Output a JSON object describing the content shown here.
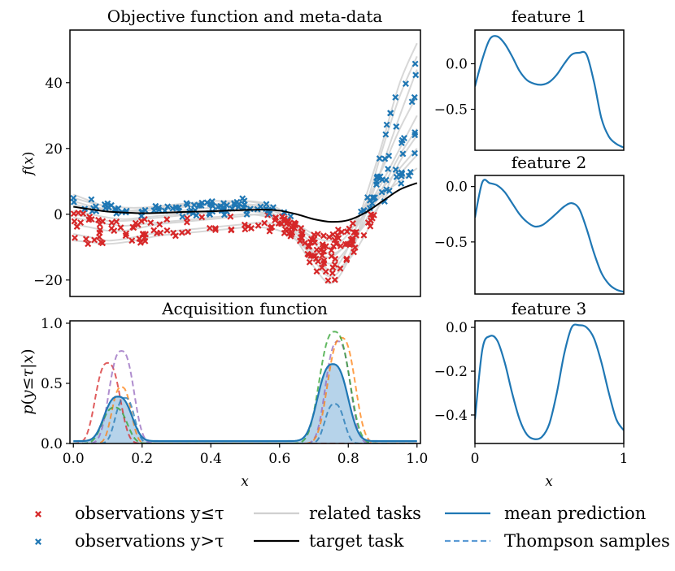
{
  "figure": {
    "legend": {
      "items": [
        {
          "kind": "marker",
          "marker": "x",
          "color": "#d62728",
          "label": "observations y≤τ"
        },
        {
          "kind": "marker",
          "marker": "x",
          "color": "#1f77b4",
          "label": "observations y>τ"
        },
        {
          "kind": "line",
          "color": "#d0d0d0",
          "dash": "solid",
          "label": "related tasks"
        },
        {
          "kind": "line",
          "color": "#000000",
          "dash": "solid",
          "label": "target task"
        },
        {
          "kind": "line",
          "color": "#1f77b4",
          "dash": "solid",
          "label": "mean prediction"
        },
        {
          "kind": "line",
          "color": "#5b9bd5",
          "dash": "dashed",
          "label": "Thompson samples"
        }
      ]
    }
  },
  "chart_data": [
    {
      "id": "objective",
      "type": "line",
      "title": "Objective function and meta-data",
      "xlabel": "",
      "ylabel": "f(x)",
      "xlim": [
        -0.01,
        1.01
      ],
      "ylim": [
        -25,
        56
      ],
      "yticks": [
        -20,
        0,
        20,
        40
      ],
      "yticklabels": [
        "−20",
        "0",
        "20",
        "40"
      ],
      "xticks": [],
      "target_task": {
        "color": "#000000",
        "x": [
          0.0,
          0.05,
          0.1,
          0.15,
          0.2,
          0.25,
          0.3,
          0.35,
          0.4,
          0.45,
          0.5,
          0.55,
          0.6,
          0.65,
          0.7,
          0.75,
          0.8,
          0.85,
          0.9,
          0.95,
          1.0
        ],
        "y": [
          2.3,
          1.5,
          0.8,
          0.5,
          0.3,
          0.4,
          0.6,
          0.8,
          0.9,
          1.1,
          1.3,
          1.4,
          1.1,
          0.0,
          -1.5,
          -2.3,
          -1.8,
          0.5,
          4.0,
          7.5,
          9.5
        ]
      },
      "related_tasks": [
        {
          "y": [
            4.0,
            2.5,
            1.5,
            1.0,
            1.5,
            2.0,
            2.5,
            3.0,
            3.0,
            2.8,
            2.5,
            2.0,
            0.0,
            -5.0,
            -12.0,
            -17.0,
            -10.0,
            5.0,
            22.0,
            40.0,
            52.0
          ]
        },
        {
          "y": [
            -3.0,
            -4.0,
            -5.0,
            -5.0,
            -4.0,
            -3.0,
            -2.5,
            -2.0,
            -1.5,
            -1.0,
            -0.5,
            0.0,
            -2.0,
            -8.0,
            -16.0,
            -21.0,
            -14.0,
            0.0,
            15.0,
            30.0,
            44.0
          ]
        },
        {
          "y": [
            6.0,
            4.0,
            2.0,
            1.0,
            1.0,
            1.5,
            2.0,
            2.5,
            3.0,
            3.5,
            4.0,
            3.5,
            1.5,
            -3.0,
            -8.0,
            -10.0,
            -6.0,
            3.0,
            14.0,
            26.0,
            36.0
          ]
        },
        {
          "y": [
            -6.0,
            -7.0,
            -8.0,
            -7.5,
            -6.5,
            -5.5,
            -5.0,
            -4.5,
            -4.0,
            -3.5,
            -3.0,
            -2.5,
            -3.5,
            -7.0,
            -12.0,
            -15.0,
            -10.0,
            -2.0,
            8.0,
            18.0,
            26.0
          ]
        },
        {
          "y": [
            1.0,
            0.0,
            -1.0,
            -1.5,
            -1.0,
            -0.5,
            0.0,
            0.5,
            1.0,
            1.5,
            2.0,
            1.5,
            -1.0,
            -6.0,
            -11.0,
            -13.0,
            -8.0,
            1.0,
            10.0,
            20.0,
            30.0
          ]
        },
        {
          "y": [
            -1.0,
            -2.0,
            -3.0,
            -3.5,
            -3.0,
            -2.5,
            -2.0,
            -1.5,
            -1.0,
            -0.5,
            0.0,
            -0.5,
            -2.0,
            -5.0,
            -9.0,
            -12.0,
            -9.0,
            -3.0,
            4.0,
            12.0,
            18.0
          ]
        },
        {
          "y": [
            3.0,
            2.0,
            1.5,
            1.0,
            0.5,
            0.5,
            1.0,
            1.5,
            2.0,
            2.5,
            3.0,
            2.5,
            0.5,
            -3.0,
            -6.0,
            -7.0,
            -4.0,
            2.0,
            8.0,
            14.0,
            20.0
          ]
        },
        {
          "y": [
            -8.0,
            -8.5,
            -9.0,
            -8.5,
            -7.5,
            -6.5,
            -6.0,
            -5.5,
            -5.0,
            -4.5,
            -4.0,
            -4.0,
            -5.0,
            -8.0,
            -13.0,
            -17.0,
            -14.0,
            -6.0,
            5.0,
            16.0,
            24.0
          ]
        },
        {
          "y": [
            5.0,
            3.5,
            2.5,
            2.0,
            2.0,
            2.5,
            3.0,
            3.5,
            4.0,
            4.0,
            4.0,
            3.0,
            0.0,
            -6.0,
            -14.0,
            -19.0,
            -13.0,
            2.0,
            20.0,
            36.0,
            48.0
          ]
        },
        {
          "y": [
            0.0,
            -1.0,
            -2.0,
            -2.0,
            -1.5,
            -1.0,
            -0.5,
            0.0,
            0.5,
            1.0,
            1.0,
            0.5,
            -1.0,
            -4.0,
            -7.0,
            -8.0,
            -5.0,
            0.0,
            6.0,
            10.0,
            14.0
          ]
        }
      ],
      "observation_legend": {
        "below_threshold_color": "#d62728",
        "above_threshold_color": "#1f77b4",
        "marker": "x"
      }
    },
    {
      "id": "acquisition",
      "type": "area",
      "title": "Acquisition function",
      "xlabel": "x",
      "ylabel": "p(y≤τ|x)",
      "xlim": [
        -0.01,
        1.01
      ],
      "ylim": [
        0.0,
        1.02
      ],
      "xticks": [
        0.0,
        0.2,
        0.4,
        0.6,
        0.8,
        1.0
      ],
      "xticklabels": [
        "0.0",
        "0.2",
        "0.4",
        "0.6",
        "0.8",
        "1.0"
      ],
      "yticks": [
        0.0,
        0.5,
        1.0
      ],
      "yticklabels": [
        "0.0",
        "0.5",
        "1.0"
      ],
      "mean_prediction": {
        "color": "#1f77b4",
        "fill": "#a9cbe6",
        "peaks": [
          [
            0.0,
            0.13,
            0.37,
            0.05
          ],
          [
            0.0,
            0.755,
            0.64,
            0.055
          ]
        ],
        "baseline": 0.02
      },
      "thompson_samples": [
        {
          "color": "#d62728",
          "peaks": [
            [
              0.0,
              0.1,
              0.67,
              0.045
            ],
            [
              0.0,
              0.755,
              0.0,
              0.05
            ]
          ],
          "baseline": 0.0
        },
        {
          "color": "#9467bd",
          "peaks": [
            [
              0.0,
              0.14,
              0.77,
              0.045
            ],
            [
              0.0,
              0.77,
              0.85,
              0.045
            ]
          ],
          "baseline": 0.0
        },
        {
          "color": "#ff7f0e",
          "peaks": [
            [
              0.0,
              0.14,
              0.47,
              0.035
            ],
            [
              0.0,
              0.78,
              0.88,
              0.05
            ]
          ],
          "baseline": 0.0
        },
        {
          "color": "#2ca02c",
          "peaks": [
            [
              0.0,
              0.12,
              0.3,
              0.045
            ],
            [
              0.0,
              0.76,
              0.93,
              0.055
            ]
          ],
          "baseline": 0.0
        },
        {
          "color": "#1f77b4",
          "peaks": [
            [
              0.0,
              0.15,
              0.38,
              0.035
            ],
            [
              0.0,
              0.76,
              0.33,
              0.035
            ]
          ],
          "baseline": 0.0
        }
      ]
    },
    {
      "id": "feature1",
      "type": "line",
      "title": "feature 1",
      "xlim": [
        0.0,
        1.0
      ],
      "ylim": [
        -0.95,
        0.37
      ],
      "yticks": [
        0.0,
        -0.5
      ],
      "yticklabels": [
        "0.0",
        "−0.5"
      ],
      "xticks": [],
      "series": [
        {
          "color": "#1f77b4",
          "x": [
            0.0,
            0.05,
            0.1,
            0.15,
            0.2,
            0.25,
            0.3,
            0.35,
            0.4,
            0.45,
            0.5,
            0.55,
            0.6,
            0.65,
            0.7,
            0.75,
            0.8,
            0.85,
            0.9,
            0.95,
            1.0
          ],
          "y": [
            -0.25,
            0.05,
            0.27,
            0.3,
            0.22,
            0.08,
            -0.08,
            -0.18,
            -0.22,
            -0.23,
            -0.2,
            -0.12,
            0.0,
            0.1,
            0.12,
            0.1,
            -0.2,
            -0.6,
            -0.8,
            -0.88,
            -0.92
          ]
        }
      ]
    },
    {
      "id": "feature2",
      "type": "line",
      "title": "feature 2",
      "xlim": [
        0.0,
        1.0
      ],
      "ylim": [
        -0.97,
        0.1
      ],
      "yticks": [
        0.0,
        -0.5
      ],
      "yticklabels": [
        "0.0",
        "−0.5"
      ],
      "xticks": [],
      "series": [
        {
          "color": "#1f77b4",
          "x": [
            0.0,
            0.05,
            0.1,
            0.15,
            0.2,
            0.25,
            0.3,
            0.35,
            0.4,
            0.45,
            0.5,
            0.55,
            0.6,
            0.65,
            0.7,
            0.75,
            0.8,
            0.85,
            0.9,
            0.95,
            1.0
          ],
          "y": [
            -0.28,
            0.04,
            0.03,
            0.01,
            -0.05,
            -0.15,
            -0.25,
            -0.32,
            -0.36,
            -0.35,
            -0.3,
            -0.24,
            -0.18,
            -0.15,
            -0.2,
            -0.38,
            -0.6,
            -0.78,
            -0.88,
            -0.93,
            -0.95
          ]
        }
      ]
    },
    {
      "id": "feature3",
      "type": "line",
      "title": "feature 3",
      "xlabel": "x",
      "xlim": [
        0.0,
        1.0
      ],
      "ylim": [
        -0.53,
        0.03
      ],
      "yticks": [
        0.0,
        -0.2,
        -0.4
      ],
      "yticklabels": [
        "0.0",
        "−0.2",
        "−0.4"
      ],
      "xticks": [
        0,
        1
      ],
      "xticklabels": [
        "0",
        "1"
      ],
      "series": [
        {
          "color": "#1f77b4",
          "x": [
            0.0,
            0.05,
            0.1,
            0.15,
            0.2,
            0.25,
            0.3,
            0.35,
            0.4,
            0.45,
            0.5,
            0.55,
            0.6,
            0.65,
            0.7,
            0.75,
            0.8,
            0.85,
            0.9,
            0.95,
            1.0
          ],
          "y": [
            -0.42,
            -0.1,
            -0.04,
            -0.06,
            -0.16,
            -0.3,
            -0.42,
            -0.49,
            -0.51,
            -0.5,
            -0.44,
            -0.3,
            -0.12,
            0.0,
            0.01,
            0.0,
            -0.05,
            -0.16,
            -0.3,
            -0.42,
            -0.47
          ]
        }
      ]
    }
  ]
}
